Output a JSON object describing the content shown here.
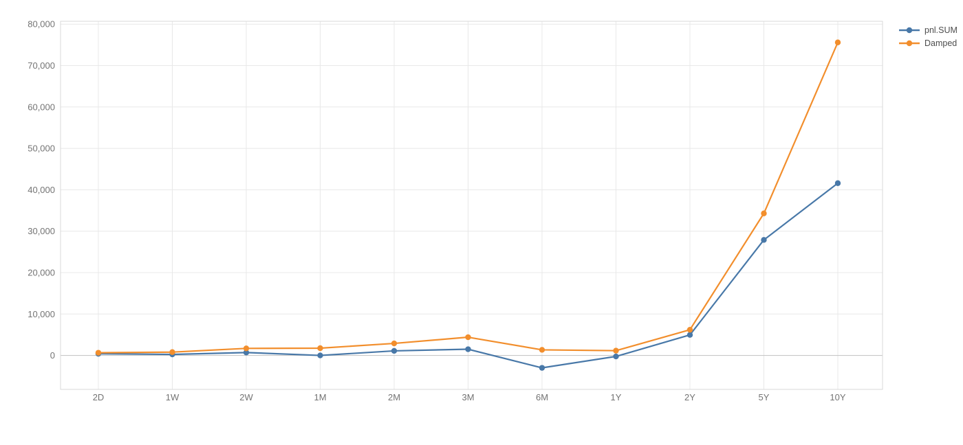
{
  "chart_data": {
    "type": "line",
    "title": "",
    "xlabel": "",
    "ylabel": "",
    "categories": [
      "2D",
      "1W",
      "2W",
      "1M",
      "2M",
      "3M",
      "6M",
      "1Y",
      "2Y",
      "5Y",
      "10Y"
    ],
    "series": [
      {
        "name": "pnl.SUM",
        "color": "#4878a8",
        "values": [
          400,
          250,
          700,
          0,
          1100,
          1500,
          -3000,
          -250,
          4950,
          27900,
          41600
        ]
      },
      {
        "name": "Damped",
        "color": "#f28e2c",
        "values": [
          650,
          800,
          1700,
          1750,
          2900,
          4400,
          1350,
          1150,
          6200,
          34300,
          75600
        ]
      }
    ],
    "ylim": [
      -8200,
      80700
    ],
    "yticks": [
      0,
      10000,
      20000,
      30000,
      40000,
      50000,
      60000,
      70000,
      80000
    ],
    "grid": true,
    "legend_position": "top-right",
    "marker": "circle"
  },
  "colors": {
    "background": "#ffffff",
    "gridline": "#e8e8e8",
    "zero_line": "#c7c7c7",
    "plot_border": "#d9d9d9",
    "tick_text": "#737373",
    "legend_text": "#4d4d4d"
  }
}
